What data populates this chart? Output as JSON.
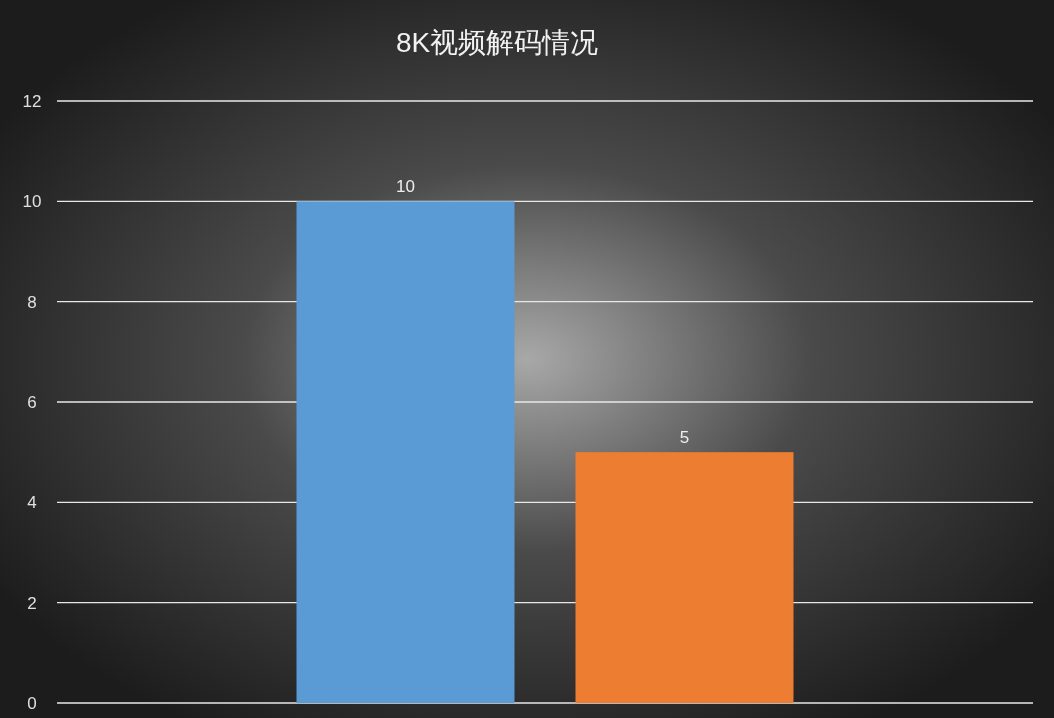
{
  "chart_data": {
    "type": "bar",
    "title": "8K视频解码情况",
    "categories": [
      null,
      null
    ],
    "values": [
      10,
      5
    ],
    "colors": [
      "#5b9bd5",
      "#ed7d31"
    ],
    "ylim": [
      0,
      12
    ],
    "yticks": [
      0,
      2,
      4,
      6,
      8,
      10,
      12
    ],
    "grid": "y",
    "data_labels": true
  }
}
